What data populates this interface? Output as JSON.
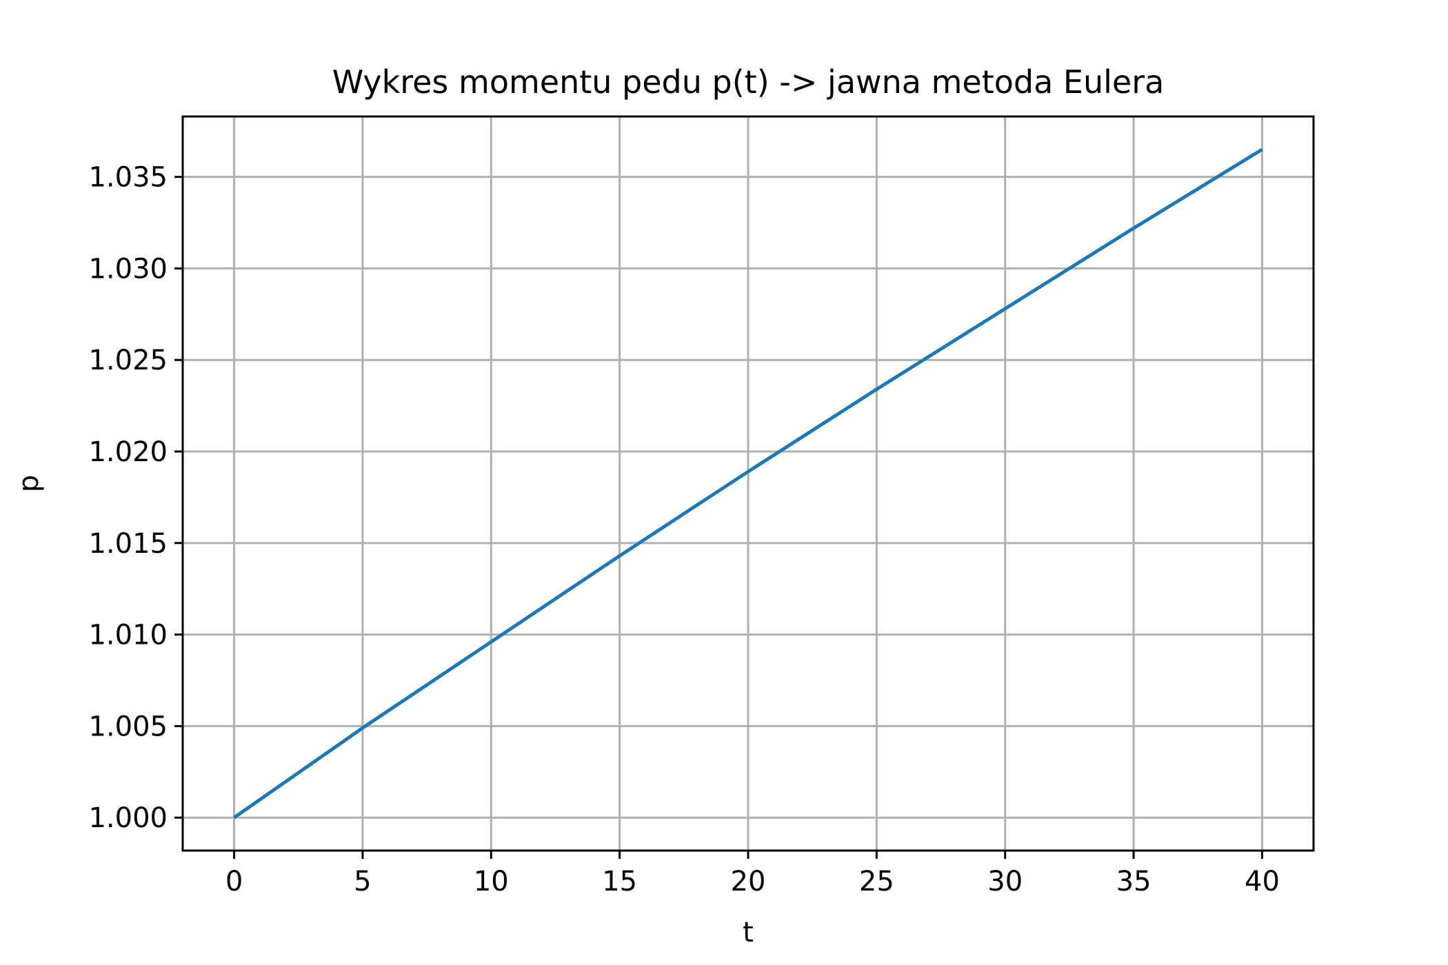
{
  "chart_data": {
    "type": "line",
    "title": "Wykres momentu pedu p(t) -> jawna metoda Eulera",
    "xlabel": "t",
    "ylabel": "p",
    "xlim": [
      -2,
      42
    ],
    "ylim": [
      0.9982,
      1.0383
    ],
    "xticks": [
      0,
      5,
      10,
      15,
      20,
      25,
      30,
      35,
      40
    ],
    "xtick_labels": [
      "0",
      "5",
      "10",
      "15",
      "20",
      "25",
      "30",
      "35",
      "40"
    ],
    "yticks": [
      1.0,
      1.005,
      1.01,
      1.015,
      1.02,
      1.025,
      1.03,
      1.035
    ],
    "ytick_labels": [
      "1.000",
      "1.005",
      "1.010",
      "1.015",
      "1.020",
      "1.025",
      "1.030",
      "1.035"
    ],
    "grid": true,
    "legend": false,
    "series": [
      {
        "color": "#1f77b4",
        "x": [
          0,
          5,
          10,
          15,
          20,
          25,
          30,
          35,
          40
        ],
        "y": [
          1.0,
          1.0049,
          1.0096,
          1.0143,
          1.0189,
          1.0234,
          1.0278,
          1.0322,
          1.0365
        ]
      }
    ]
  }
}
